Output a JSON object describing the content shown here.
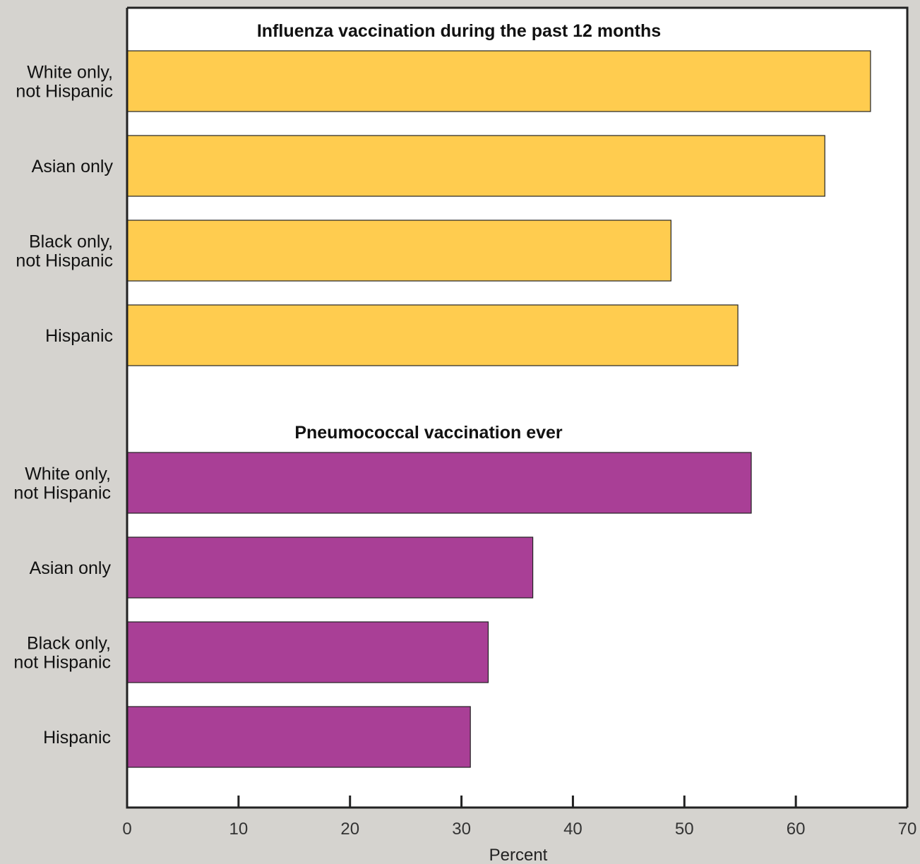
{
  "chart_data": {
    "type": "bar",
    "orientation": "horizontal",
    "xlabel": "Percent",
    "xlim": [
      0,
      70
    ],
    "xticks": [
      0,
      10,
      20,
      30,
      40,
      50,
      60,
      70
    ],
    "grid": false,
    "groups": [
      {
        "title": "Influenza vaccination during the past 12 months",
        "color": "#ffcc4f",
        "categories": [
          [
            "White only,",
            "not Hispanic"
          ],
          [
            "Asian only"
          ],
          [
            "Black only,",
            "not Hispanic"
          ],
          [
            "Hispanic"
          ]
        ],
        "values": [
          66.7,
          62.6,
          48.8,
          54.8
        ]
      },
      {
        "title": "Pneumococcal vaccination ever",
        "color": "#a93f96",
        "categories": [
          [
            "White only,",
            "not Hispanic"
          ],
          [
            "Asian only"
          ],
          [
            "Black only,",
            "not Hispanic"
          ],
          [
            "Hispanic"
          ]
        ],
        "values": [
          56.0,
          36.4,
          32.4,
          30.8
        ]
      }
    ]
  }
}
